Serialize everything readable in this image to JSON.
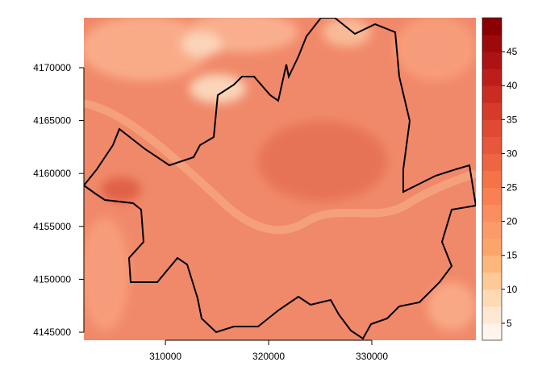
{
  "map": {
    "xlim": [
      302100,
      340080
    ],
    "ylim": [
      4144240,
      4174720
    ],
    "xticks": [
      310000,
      320000,
      330000
    ],
    "yticks": [
      4145000,
      4150000,
      4155000,
      4160000,
      4165000,
      4170000
    ],
    "legend": {
      "range": [
        2.5,
        50
      ],
      "ticks": [
        5,
        10,
        15,
        20,
        25,
        30,
        35,
        40,
        45
      ],
      "colors": [
        "#fff5eb",
        "#fee8d3",
        "#fdd9b4",
        "#fdc997",
        "#fdb77a",
        "#fca56a",
        "#fc9a6a",
        "#fb8e5e",
        "#f88052",
        "#f47447",
        "#ee6541",
        "#e8573b",
        "#e04932",
        "#d63b2a",
        "#cb2c22",
        "#bd1e1b",
        "#ad1214",
        "#9c0a0b",
        "#8b0000"
      ]
    }
  }
}
